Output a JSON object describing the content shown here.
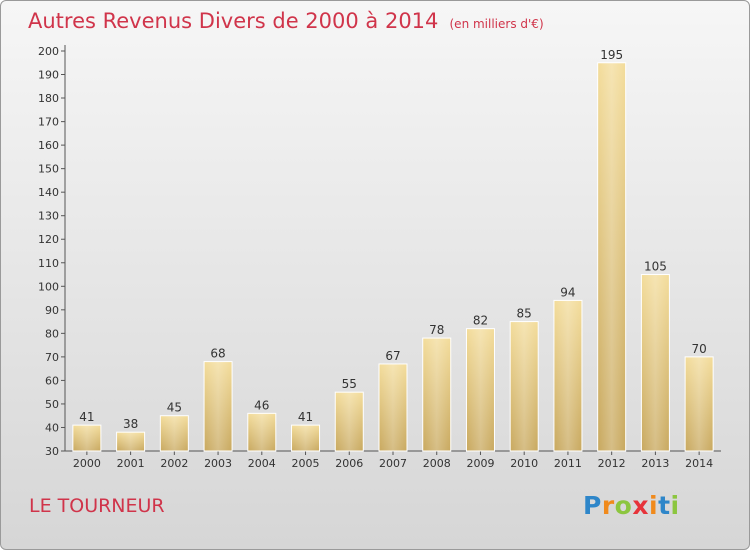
{
  "chart_data": {
    "type": "bar",
    "title": "Autres Revenus Divers de 2000 à 2014",
    "subtitle": "(en milliers d'€)",
    "categories": [
      "2000",
      "2001",
      "2002",
      "2003",
      "2004",
      "2005",
      "2006",
      "2007",
      "2008",
      "2009",
      "2010",
      "2011",
      "2012",
      "2013",
      "2014"
    ],
    "values": [
      41,
      38,
      45,
      68,
      46,
      41,
      55,
      67,
      78,
      82,
      85,
      94,
      195,
      105,
      70
    ],
    "ylim": [
      30,
      200
    ],
    "yticks": [
      30,
      40,
      50,
      60,
      70,
      80,
      90,
      100,
      110,
      120,
      130,
      140,
      150,
      160,
      170,
      180,
      190,
      200
    ],
    "grid": false,
    "bar_color": "#e8c97a"
  },
  "location": "LE TOURNEUR",
  "brand": {
    "letters": [
      "P",
      "r",
      "o",
      "x",
      "i",
      "t",
      "i"
    ],
    "colors": [
      "#2e86c9",
      "#f08a1c",
      "#8cc63f",
      "#e6333a",
      "#f08a1c",
      "#2e86c9",
      "#8cc63f"
    ]
  }
}
